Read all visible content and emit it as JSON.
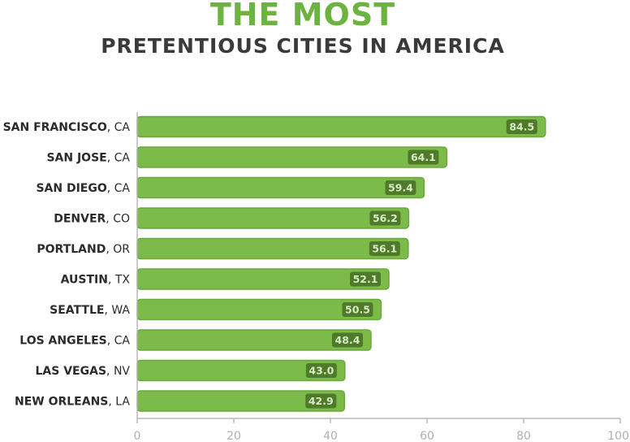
{
  "chart_data": {
    "type": "bar",
    "orientation": "horizontal",
    "title": "THE MOST",
    "subtitle": "PRETENTIOUS CITIES IN AMERICA",
    "categories": [
      {
        "city": "SAN FRANCISCO",
        "state": "CA"
      },
      {
        "city": "SAN JOSE",
        "state": "CA"
      },
      {
        "city": "SAN DIEGO",
        "state": "CA"
      },
      {
        "city": "DENVER",
        "state": "CO"
      },
      {
        "city": "PORTLAND",
        "state": "OR"
      },
      {
        "city": "AUSTIN",
        "state": "TX"
      },
      {
        "city": "SEATTLE",
        "state": "WA"
      },
      {
        "city": "LOS ANGELES",
        "state": "CA"
      },
      {
        "city": "LAS VEGAS",
        "state": "NV"
      },
      {
        "city": "NEW ORLEANS",
        "state": "LA"
      }
    ],
    "values": [
      84.5,
      64.1,
      59.4,
      56.2,
      56.1,
      52.1,
      50.5,
      48.4,
      43.0,
      42.9
    ],
    "value_labels": [
      "84.5",
      "64.1",
      "59.4",
      "56.2",
      "56.1",
      "52.1",
      "50.5",
      "48.4",
      "43.0",
      "42.9"
    ],
    "xlim": [
      0,
      100
    ],
    "xticks": [
      "0",
      "20",
      "40",
      "60",
      "80",
      "100"
    ],
    "grid": false,
    "colors": {
      "bar": "#7cbb4a",
      "bar_edge": "#6aa83c",
      "label_box": "#4e7a2a",
      "label_text": "#d6ecc4",
      "title": "#6db33f",
      "subtitle": "#3a3a3a",
      "axis": "#b8b8b8"
    }
  }
}
